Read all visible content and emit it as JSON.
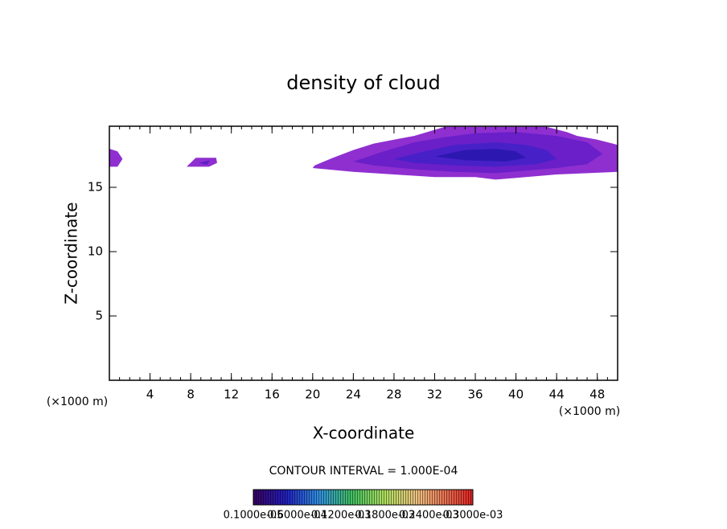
{
  "chart_data": {
    "type": "contour",
    "title": "density of cloud",
    "x_label": "X-coordinate",
    "y_label": "Z-coordinate",
    "x_unit_left": "(×1000 m)",
    "x_unit_right": "(×1000 m)",
    "xlim": [
      0,
      50
    ],
    "ylim": [
      0,
      19.75
    ],
    "xticks": [
      4,
      8,
      12,
      16,
      20,
      24,
      28,
      32,
      36,
      40,
      44,
      48
    ],
    "yticks": [
      5,
      10,
      15
    ],
    "contour_interval": "CONTOUR INTERVAL = 1.000E-04",
    "colorbar_labels": [
      "0.1000e-05",
      "0.6000e-04",
      "0.1200e-03",
      "0.1800e-03",
      "0.2400e-03",
      "0.3000e-03"
    ],
    "regions": [
      {
        "color": "#8f2fd0",
        "x": [
          20.2,
          22,
          24,
          26,
          28,
          30,
          33,
          36,
          43,
          45,
          46,
          48,
          50,
          50,
          44,
          38,
          36,
          32,
          28,
          24,
          20
        ],
        "z": [
          16.7,
          17.3,
          17.9,
          18.4,
          18.7,
          19.0,
          19.7,
          19.7,
          19.7,
          19.3,
          19.0,
          18.7,
          18.3,
          16.2,
          16.0,
          15.6,
          15.8,
          15.8,
          16.0,
          16.2,
          16.5
        ]
      },
      {
        "color": "#6a1fc8",
        "x": [
          24,
          27,
          30,
          33,
          36,
          40,
          44,
          47,
          48.5,
          47,
          44,
          38,
          34,
          30,
          26
        ],
        "z": [
          17.0,
          17.8,
          18.5,
          18.9,
          19.2,
          19.3,
          19.0,
          18.5,
          17.6,
          16.8,
          16.5,
          16.1,
          16.2,
          16.4,
          16.7
        ]
      },
      {
        "color": "#4820c8",
        "x": [
          28,
          31,
          34,
          38,
          41,
          43,
          44,
          42,
          38,
          34,
          30
        ],
        "z": [
          17.2,
          17.8,
          18.3,
          18.5,
          18.3,
          17.9,
          17.2,
          16.8,
          16.6,
          16.7,
          16.9
        ]
      },
      {
        "color": "#2c18b0",
        "x": [
          32,
          35,
          38,
          40,
          41,
          39,
          35
        ],
        "z": [
          17.4,
          17.9,
          18.0,
          17.8,
          17.3,
          17.0,
          17.1
        ]
      },
      {
        "color": "#8f2fd0",
        "x": [
          0,
          0,
          0.8,
          1.3,
          0.8
        ],
        "z": [
          16.6,
          18.0,
          17.8,
          17.2,
          16.6
        ]
      },
      {
        "color": "#8f2fd0",
        "x": [
          7.6,
          8.5,
          10.5,
          10.6,
          9.8
        ],
        "z": [
          16.6,
          17.3,
          17.3,
          16.9,
          16.6
        ]
      },
      {
        "color": "#5a1fc8",
        "x": [
          8.8,
          9.9,
          9.6
        ],
        "z": [
          16.9,
          17.1,
          16.75
        ]
      }
    ]
  }
}
